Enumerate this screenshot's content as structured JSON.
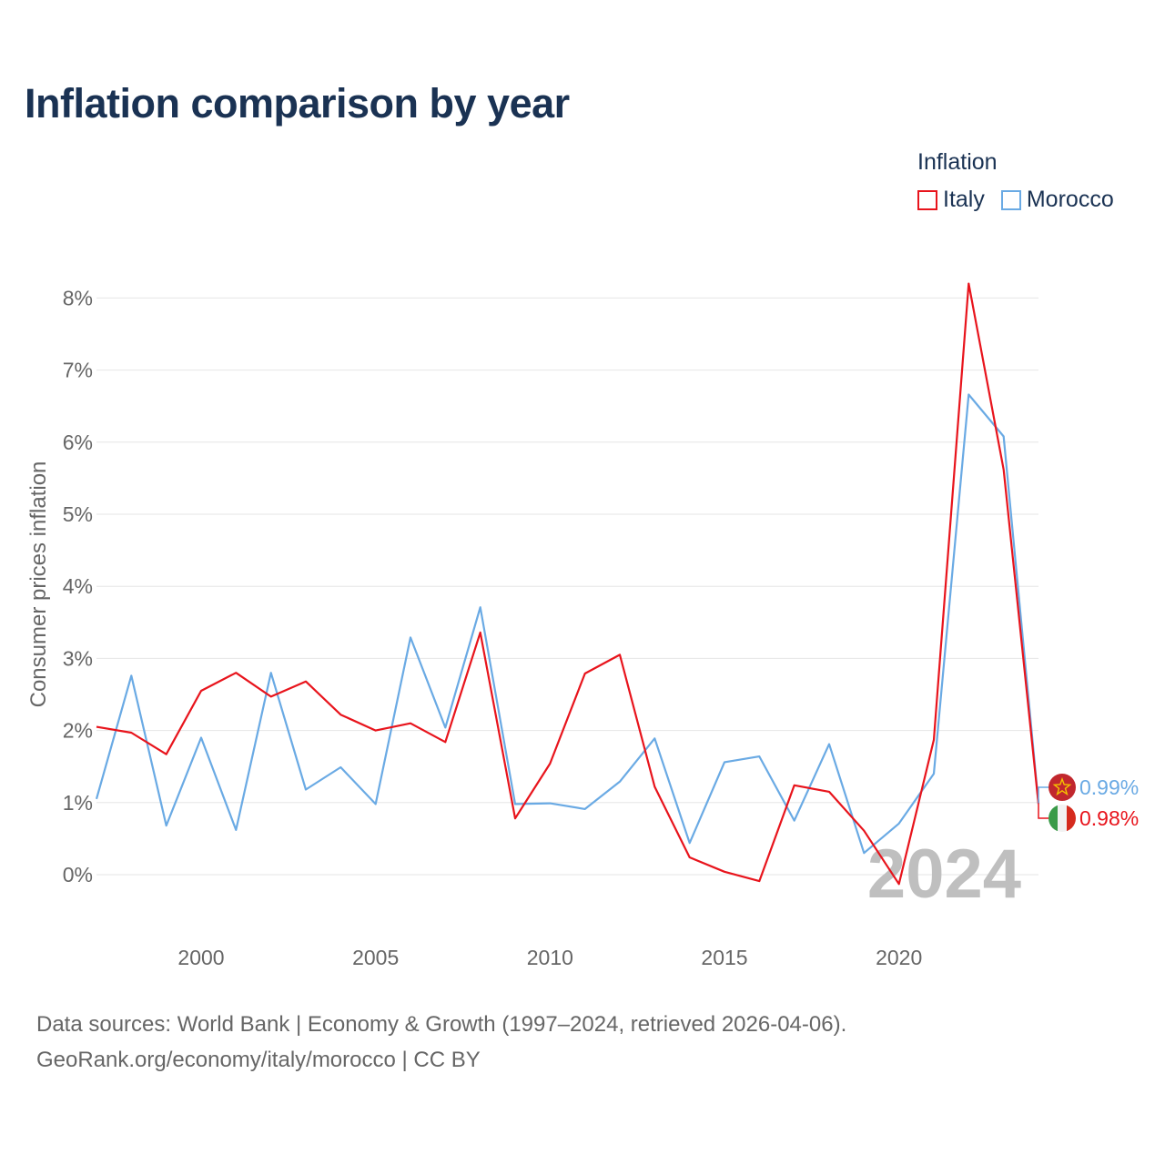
{
  "title": "Inflation comparison by year",
  "legend": {
    "title": "Inflation",
    "items": [
      {
        "label": "Italy",
        "color": "#e8141c"
      },
      {
        "label": "Morocco",
        "color": "#6aaae4"
      }
    ]
  },
  "source": {
    "line1": "Data sources: World Bank | Economy & Growth (1997–2024, retrieved 2026-04-06).",
    "line2": "GeoRank.org/economy/italy/morocco | CC BY"
  },
  "watermark_year": "2024",
  "end_labels": {
    "morocco": "0.99%",
    "italy": "0.98%"
  },
  "chart_data": {
    "type": "line",
    "title": "Inflation comparison by year",
    "xlabel": "",
    "ylabel": "Consumer prices inflation",
    "x": [
      1997,
      1998,
      1999,
      2000,
      2001,
      2002,
      2003,
      2004,
      2005,
      2006,
      2007,
      2008,
      2009,
      2010,
      2011,
      2012,
      2013,
      2014,
      2015,
      2016,
      2017,
      2018,
      2019,
      2020,
      2021,
      2022,
      2023,
      2024
    ],
    "xlim": [
      1997,
      2024
    ],
    "ylim": [
      -0.9,
      8.3
    ],
    "x_ticks": [
      2000,
      2005,
      2010,
      2015,
      2020
    ],
    "x_tick_labels": [
      "2000",
      "2005",
      "2010",
      "2015",
      "2020"
    ],
    "y_ticks": [
      0,
      1,
      2,
      3,
      4,
      5,
      6,
      7,
      8
    ],
    "y_tick_labels": [
      "0%",
      "1%",
      "2%",
      "3%",
      "4%",
      "5%",
      "6%",
      "7%",
      "8%"
    ],
    "grid": true,
    "legend_position": "top-right",
    "series": [
      {
        "name": "Italy",
        "color": "#e8141c",
        "values": [
          2.05,
          1.97,
          1.67,
          2.55,
          2.8,
          2.47,
          2.68,
          2.22,
          2.0,
          2.1,
          1.84,
          3.36,
          0.78,
          1.54,
          2.79,
          3.05,
          1.22,
          0.24,
          0.04,
          -0.09,
          1.24,
          1.15,
          0.61,
          -0.13,
          1.87,
          8.2,
          5.62,
          0.98
        ]
      },
      {
        "name": "Morocco",
        "color": "#6aaae4",
        "values": [
          1.05,
          2.76,
          0.68,
          1.9,
          0.62,
          2.8,
          1.18,
          1.49,
          0.98,
          3.29,
          2.04,
          3.71,
          0.98,
          0.99,
          0.91,
          1.29,
          1.89,
          0.44,
          1.56,
          1.64,
          0.75,
          1.81,
          0.3,
          0.71,
          1.4,
          6.66,
          6.08,
          0.99
        ]
      }
    ]
  }
}
